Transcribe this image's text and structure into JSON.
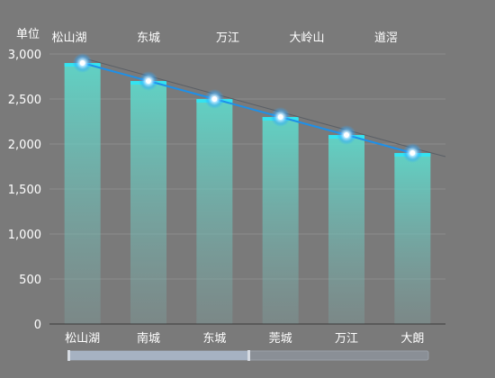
{
  "chart_data": {
    "type": "bar",
    "unit_label": "单位",
    "categories": [
      "松山湖",
      "南城",
      "东城",
      "莞城",
      "万江",
      "大朗"
    ],
    "top_categories": [
      "松山湖",
      "东城",
      "万江",
      "大岭山",
      "道滘"
    ],
    "series": [
      {
        "values": [
          2900,
          2700,
          2500,
          2300,
          2100,
          1900
        ]
      }
    ],
    "line_series": [
      {
        "values": [
          2900,
          2700,
          2500,
          2300,
          2100,
          1900
        ],
        "color": "#1e90e8"
      }
    ],
    "yticks": [
      0,
      500,
      1000,
      1500,
      2000,
      2500,
      3000
    ],
    "yticks_labels": [
      "0",
      "500",
      "1,000",
      "1,500",
      "2,000",
      "2,500",
      "3,000"
    ],
    "ylim": [
      0,
      3000
    ],
    "grid": true,
    "bar_color": "#5ad3c4",
    "bar_top_color": "#34e3f0"
  },
  "slider": {
    "range": [
      0,
      0.5
    ]
  }
}
